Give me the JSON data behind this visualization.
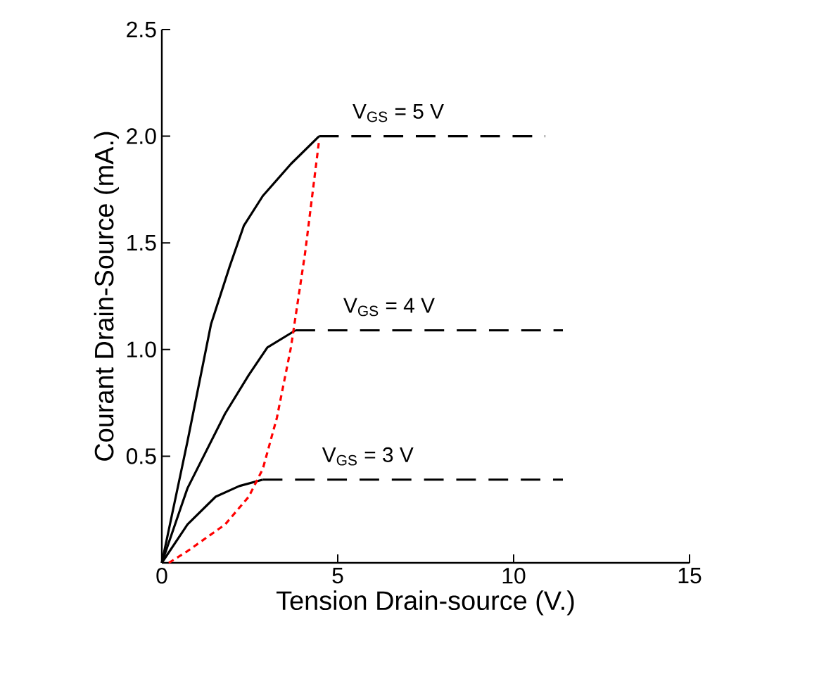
{
  "chart_data": {
    "type": "line",
    "xlabel": "Tension Drain-source (V.)",
    "ylabel": "Courant Drain-Source (mA.)",
    "xlim": [
      0,
      15
    ],
    "ylim": [
      0,
      2.5
    ],
    "xticks": [
      0,
      5,
      10,
      15
    ],
    "yticks": [
      0.5,
      {
        "value": 1,
        "label": "1.0"
      },
      1.5,
      {
        "value": 2,
        "label": "2.0"
      },
      2.5
    ],
    "grid": false,
    "legend": false,
    "marker": "none",
    "series": [
      {
        "color": "#000000",
        "line_style": "solid",
        "x": [
          0,
          0.73,
          1.4,
          1.93,
          2.33,
          2.87,
          3.67,
          4.47
        ],
        "values": [
          0,
          0.57,
          1.12,
          1.39,
          1.58,
          1.72,
          1.87,
          2.0
        ]
      },
      {
        "name": "V$_{GS}$ = 5 V",
        "color": "#000000",
        "line_style": "dashed",
        "x": [
          4.47,
          10.9
        ],
        "values": [
          2.0,
          2.0
        ]
      },
      {
        "color": "#000000",
        "line_style": "solid",
        "x": [
          0,
          0.73,
          1.8,
          2.47,
          3.0,
          3.8
        ],
        "values": [
          0,
          0.35,
          0.7,
          0.88,
          1.01,
          1.09
        ]
      },
      {
        "name": "V$_{GS}$ = 4 V",
        "color": "#000000",
        "line_style": "dashed",
        "x": [
          3.8,
          11.4
        ],
        "values": [
          1.09,
          1.09
        ]
      },
      {
        "color": "#000000",
        "line_style": "solid",
        "x": [
          0,
          0.73,
          1.53,
          2.2,
          2.87
        ],
        "values": [
          0,
          0.18,
          0.31,
          0.36,
          0.39
        ]
      },
      {
        "name": "V$_{GS}$ = 3 V",
        "color": "#000000",
        "line_style": "dashed",
        "x": [
          2.87,
          11.4
        ],
        "values": [
          0.39,
          0.39
        ]
      },
      {
        "color": "#ff0000",
        "line_style": "dotted",
        "x": [
          0.2,
          0.73,
          1.8,
          2.47,
          2.87,
          3.27,
          3.67,
          4.07,
          4.47
        ],
        "values": [
          0,
          0.055,
          0.18,
          0.31,
          0.44,
          0.68,
          1.01,
          1.45,
          1.98
        ]
      }
    ]
  }
}
